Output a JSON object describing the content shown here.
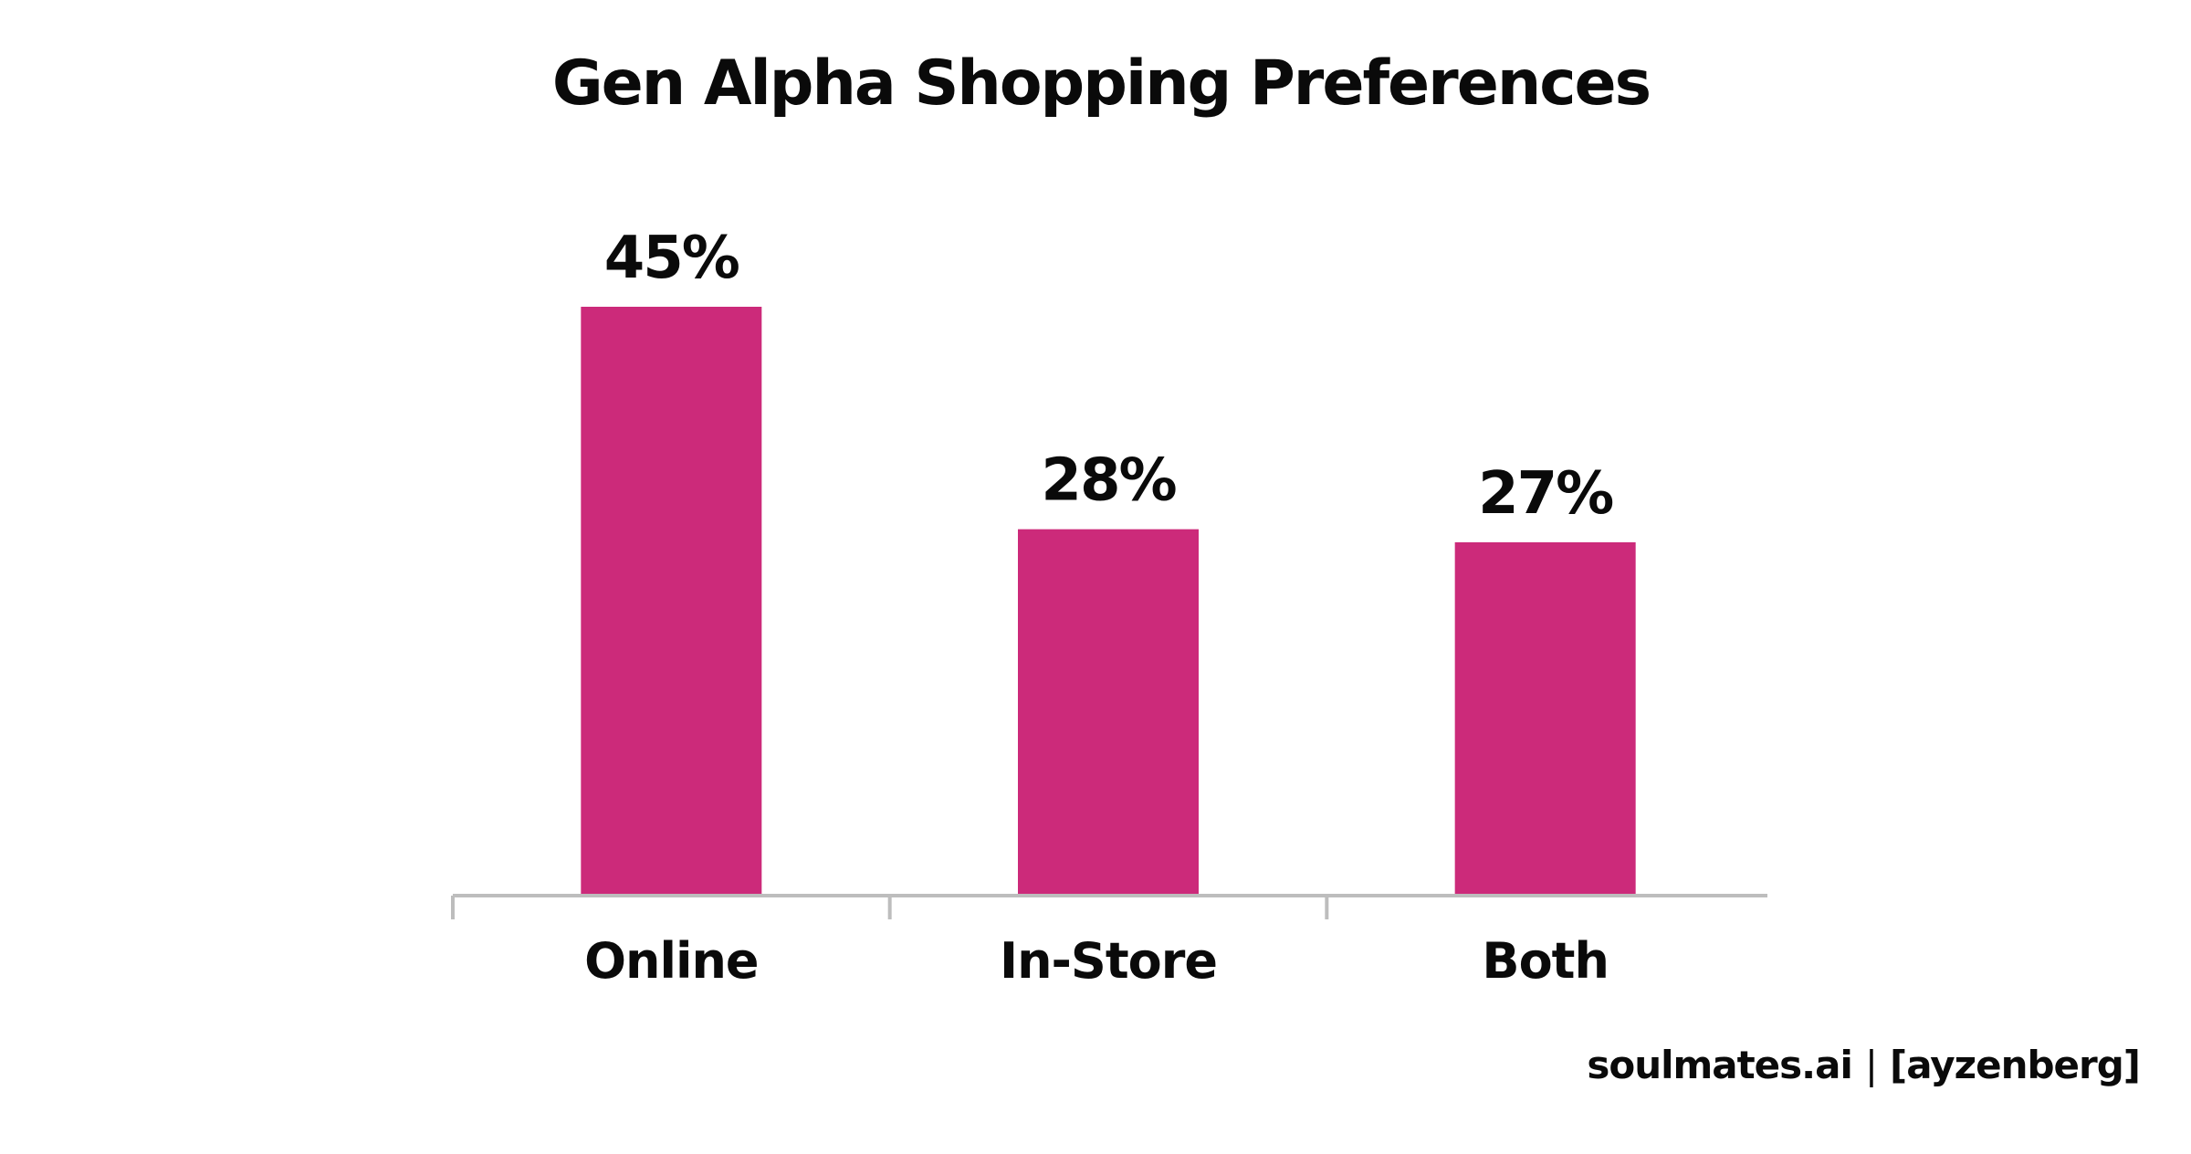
{
  "chart_data": {
    "type": "bar",
    "title": "Gen Alpha Shopping Preferences",
    "categories": [
      "Online",
      "In-Store",
      "Both"
    ],
    "values": [
      45,
      28,
      27
    ],
    "value_labels": [
      "45%",
      "28%",
      "27%"
    ],
    "unit": "%",
    "ylim": [
      0,
      45
    ],
    "grid": false,
    "legend": "none",
    "bar_color": "#CC2A7A",
    "axis_color": "#BDBDBD"
  },
  "footer": {
    "brand": "soulmates.ai",
    "separator": "|",
    "partner": "[ayzenberg]"
  }
}
